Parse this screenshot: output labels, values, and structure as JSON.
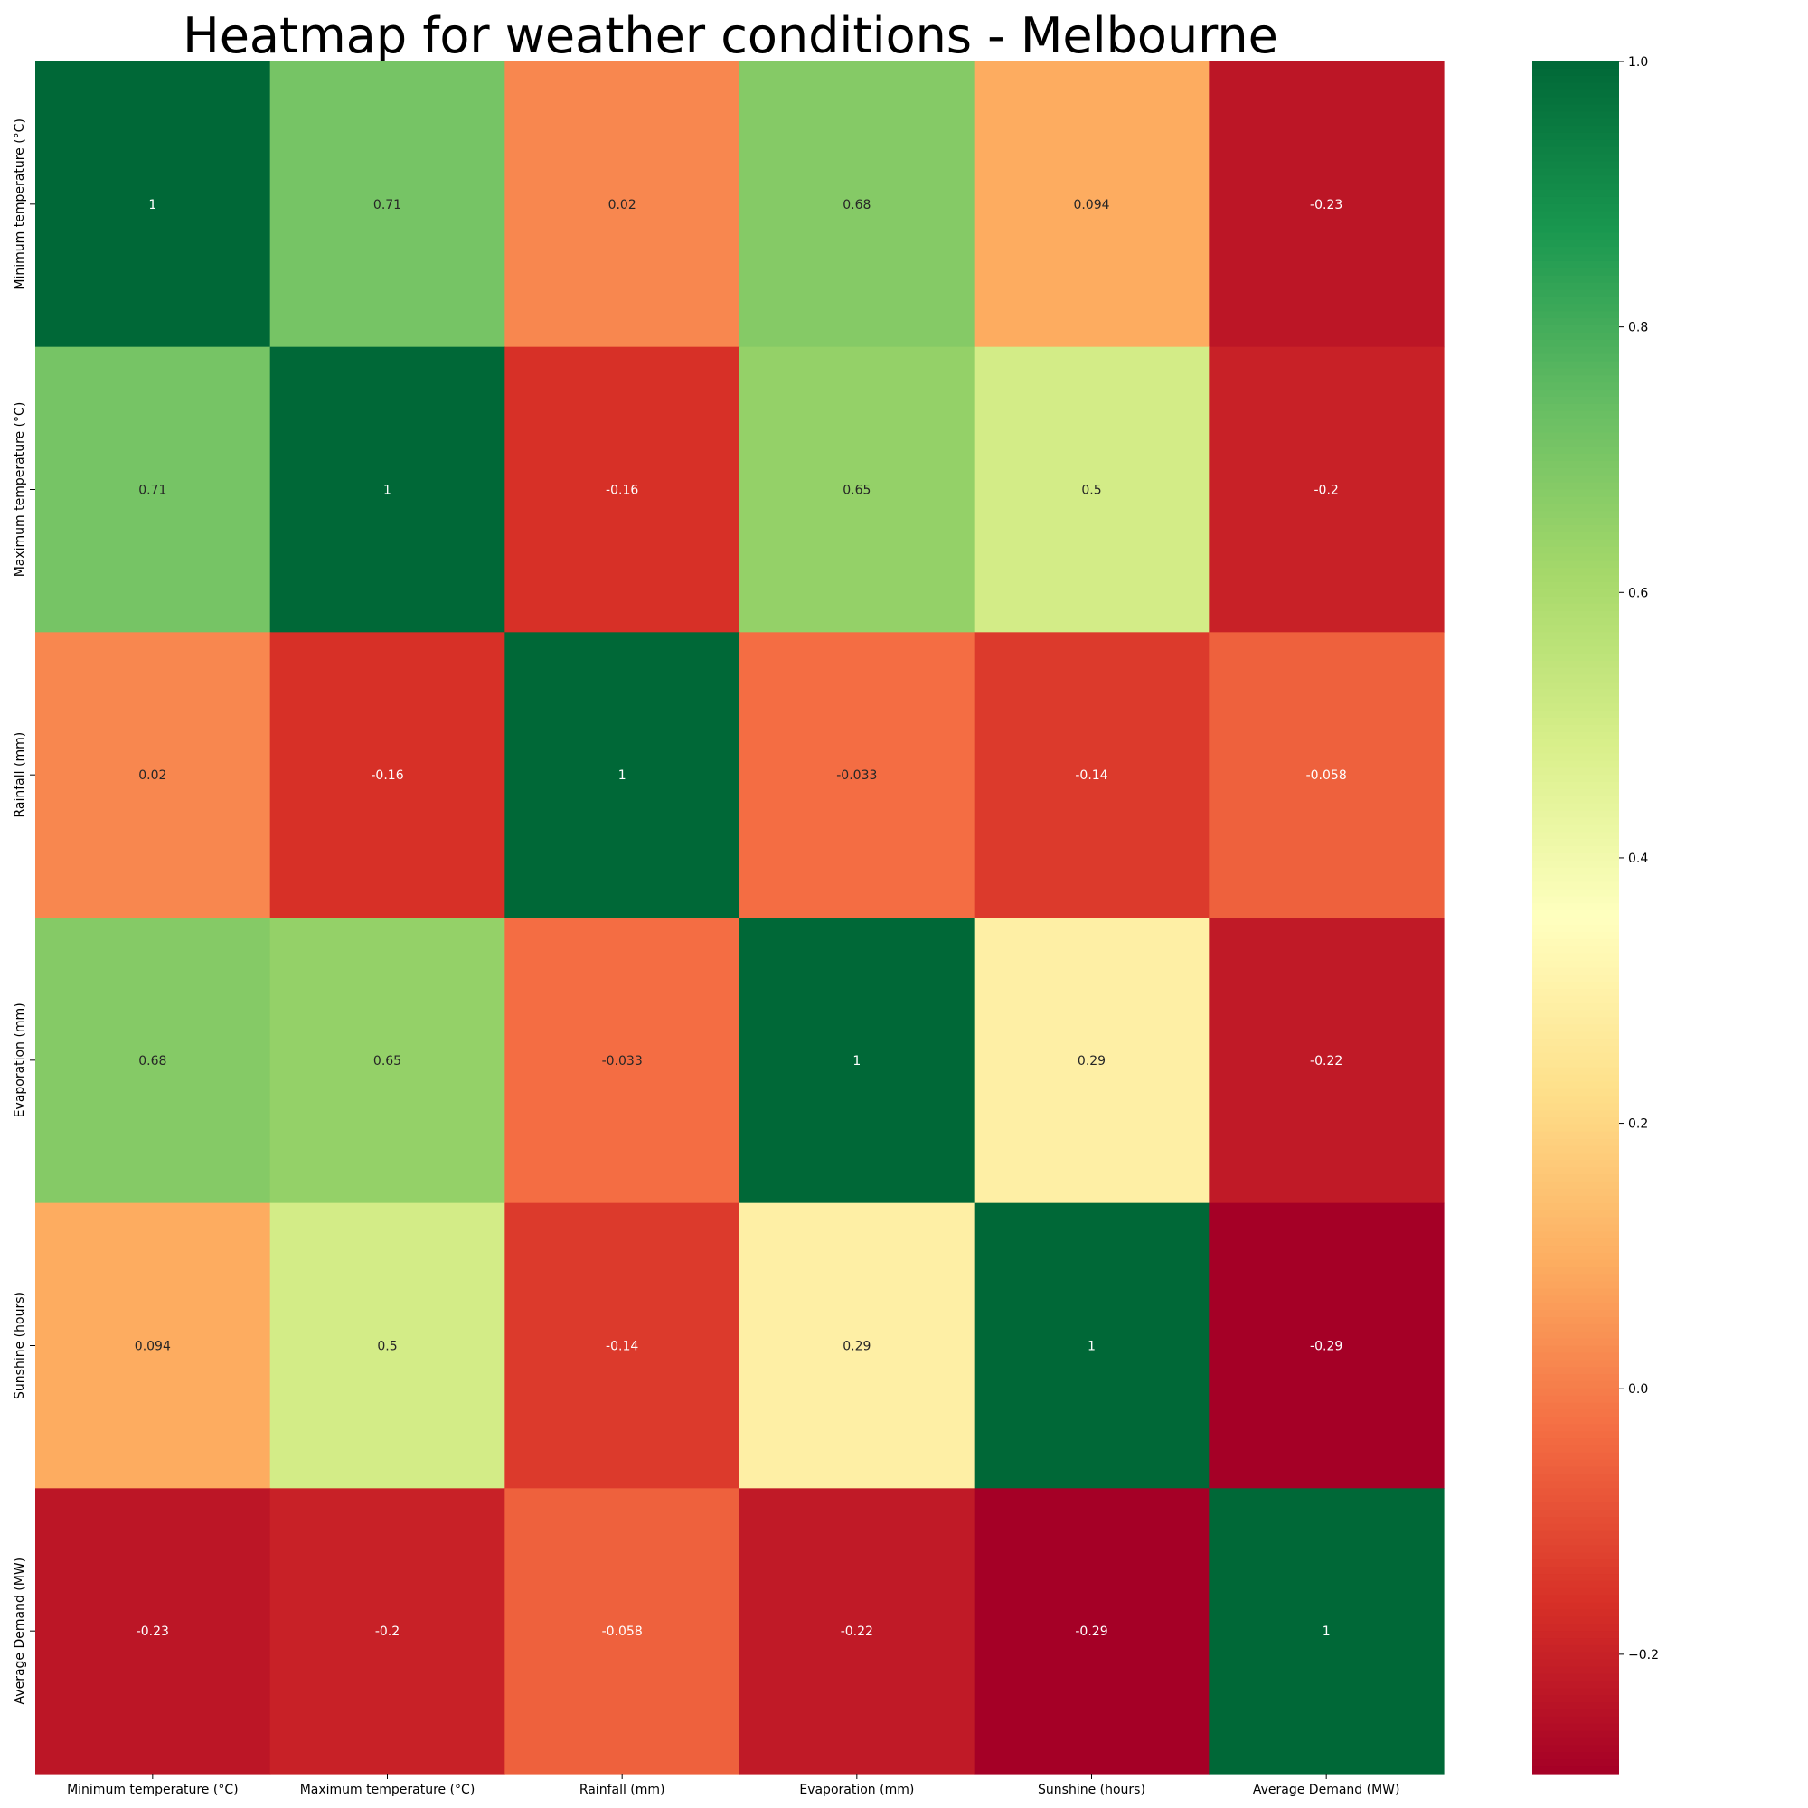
{
  "chart_data": {
    "type": "heatmap",
    "title": "Heatmap for weather conditions - Melbourne",
    "xlabel": "",
    "ylabel": "",
    "categories": [
      "Minimum temperature (°C)",
      "Maximum temperature (°C)",
      "Rainfall (mm)",
      "Evaporation (mm)",
      "Sunshine (hours)",
      "Average Demand (MW)"
    ],
    "values": [
      [
        1,
        0.71,
        0.02,
        0.68,
        0.094,
        -0.23
      ],
      [
        0.71,
        1,
        -0.16,
        0.65,
        0.5,
        -0.2
      ],
      [
        0.02,
        -0.16,
        1,
        -0.033,
        -0.14,
        -0.058
      ],
      [
        0.68,
        0.65,
        -0.033,
        1,
        0.29,
        -0.22
      ],
      [
        0.094,
        0.5,
        -0.14,
        0.29,
        1,
        -0.29
      ],
      [
        -0.23,
        -0.2,
        -0.058,
        -0.22,
        -0.29,
        1
      ]
    ],
    "annotations": [
      [
        "1",
        "0.71",
        "0.02",
        "0.68",
        "0.094",
        "-0.23"
      ],
      [
        "0.71",
        "1",
        "-0.16",
        "0.65",
        "0.5",
        "-0.2"
      ],
      [
        "0.02",
        "-0.16",
        "1",
        "-0.033",
        "-0.14",
        "-0.058"
      ],
      [
        "0.68",
        "0.65",
        "-0.033",
        "1",
        "0.29",
        "-0.22"
      ],
      [
        "0.094",
        "0.5",
        "-0.14",
        "0.29",
        "1",
        "-0.29"
      ],
      [
        "-0.23",
        "-0.2",
        "-0.058",
        "-0.22",
        "-0.29",
        "1"
      ]
    ],
    "colormap": "RdYlGn",
    "vmin": -0.29,
    "vmax": 1,
    "colorbar": {
      "ticks": [
        1,
        0.8,
        0.6,
        0.4,
        0.2,
        0,
        -0.2
      ],
      "tick_labels": [
        "1.0",
        "0.8",
        "0.6",
        "0.4",
        "0.2",
        "0.0",
        "−0.2"
      ],
      "placement": "right"
    },
    "grid": false
  }
}
